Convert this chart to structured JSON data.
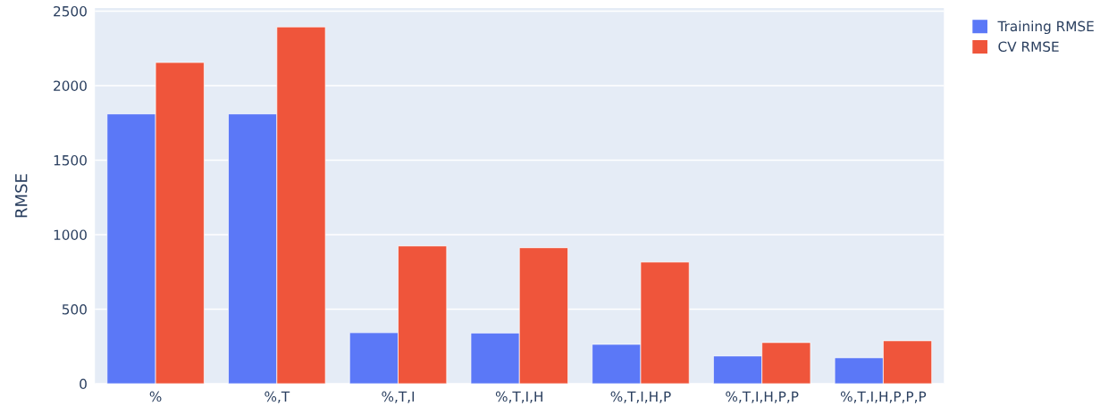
{
  "chart_data": {
    "type": "bar",
    "ylabel": "RMSE",
    "categories": [
      "%",
      "%,T",
      "%,T,I",
      "%,T,I,H",
      "%,T,I,H,P",
      "%,T,I,H,P,P",
      "%,T,I,H,P,P,P"
    ],
    "series": [
      {
        "name": "Training RMSE",
        "color": "#5b78f7",
        "values": [
          1810,
          1810,
          342,
          340,
          264,
          186,
          174
        ]
      },
      {
        "name": "CV RMSE",
        "color": "#ef553b",
        "values": [
          2155,
          2394,
          924,
          912,
          816,
          276,
          288
        ]
      }
    ],
    "ylim": [
      0,
      2520
    ],
    "yticks": [
      0,
      500,
      1000,
      1500,
      2000,
      2500
    ],
    "grid": "y",
    "legend": "top right"
  }
}
